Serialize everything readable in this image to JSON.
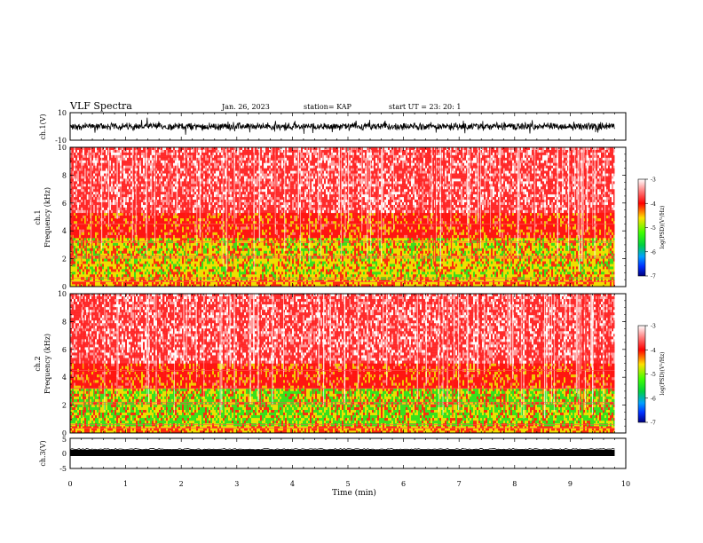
{
  "header": {
    "title": "VLF Spectra",
    "date": "Jan. 26, 2023",
    "station": "station= KAP",
    "start": "start UT =  23: 20: 1"
  },
  "colors": {
    "spec_high": "#ff1010",
    "spec_mid": "#f0e000",
    "spec_low": "#20e020",
    "waveform": "#000000"
  },
  "chart_data": [
    {
      "type": "line",
      "name": "ch1-waveform",
      "ylabel": "ch.1(V)",
      "ylim": [
        -10,
        10
      ],
      "yticks": [
        "10",
        "-10"
      ],
      "xlim": [
        0,
        10
      ],
      "data_end_min": 9.8,
      "approx_envelope_V": [
        -3,
        3
      ]
    },
    {
      "type": "heatmap",
      "name": "ch1-spectrogram",
      "ylabel": "ch.1\nFrequency (kHz)",
      "ylim": [
        0,
        10
      ],
      "yticks": [
        "0",
        "2",
        "4",
        "6",
        "8",
        "10"
      ],
      "xlim": [
        0,
        10
      ],
      "data_end_min": 9.8,
      "bands_kHz": [
        {
          "from": 0,
          "to": 0.5,
          "level": "mid"
        },
        {
          "from": 0.5,
          "to": 3.5,
          "level": "mid-low"
        },
        {
          "from": 3.5,
          "to": 5.3,
          "level": "high-mid"
        },
        {
          "from": 5.3,
          "to": 10,
          "level": "high-sparse"
        }
      ],
      "colorbar": {
        "label": "log(PSD)(V²/Hz)",
        "ticks": [
          "-3",
          "-4",
          "-5",
          "-6",
          "-7"
        ],
        "range": [
          -7,
          -3
        ]
      }
    },
    {
      "type": "heatmap",
      "name": "ch2-spectrogram",
      "ylabel": "ch.2\nFrequency (kHz)",
      "ylim": [
        0,
        10
      ],
      "yticks": [
        "0",
        "2",
        "4",
        "6",
        "8",
        "10"
      ],
      "xlim": [
        0,
        10
      ],
      "data_end_min": 9.8,
      "bands_kHz": [
        {
          "from": 0,
          "to": 0.5,
          "level": "mid"
        },
        {
          "from": 0.5,
          "to": 3.2,
          "level": "low-mid"
        },
        {
          "from": 3.2,
          "to": 5.0,
          "level": "high-mid"
        },
        {
          "from": 5.0,
          "to": 10,
          "level": "high-sparse"
        }
      ],
      "colorbar": {
        "label": "log(PSD)(V²/Hz)",
        "ticks": [
          "-3",
          "-4",
          "-5",
          "-6",
          "-7"
        ],
        "range": [
          -7,
          -3
        ]
      }
    },
    {
      "type": "line",
      "name": "ch3-waveform",
      "ylabel": "ch.3(V)",
      "ylim": [
        -5,
        5
      ],
      "yticks": [
        "5",
        "0",
        "-5"
      ],
      "xlim": [
        0,
        10
      ],
      "data_end_min": 9.8,
      "approx_level_V": 0
    }
  ],
  "xaxis": {
    "label": "Time (min)",
    "ticks": [
      "0",
      "1",
      "2",
      "3",
      "4",
      "5",
      "6",
      "7",
      "8",
      "9",
      "10"
    ]
  }
}
